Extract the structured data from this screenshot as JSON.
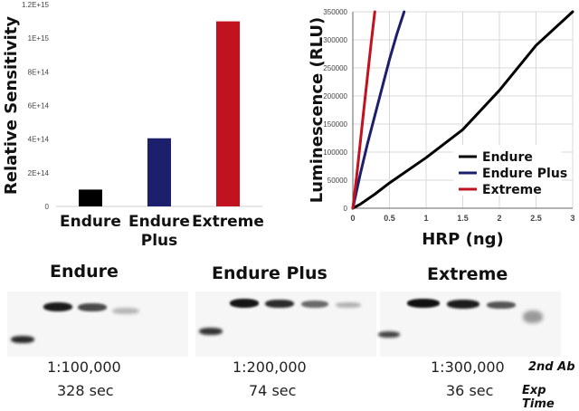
{
  "chart_data": [
    {
      "type": "bar",
      "ylabel": "Relative Sensitivity",
      "categories": [
        "Endure",
        "Endure Plus",
        "Extreme"
      ],
      "category_lines": [
        [
          "Endure"
        ],
        [
          "Endure",
          "Plus"
        ],
        [
          "Extreme"
        ]
      ],
      "values": [
        100000000000000.0,
        405000000000000.0,
        1100000000000000.0
      ],
      "colors": [
        "#000000",
        "#1c1f6b",
        "#c1121f"
      ],
      "ylim": [
        0,
        1200000000000000.0
      ],
      "yticks": [
        0,
        200000000000000.0,
        400000000000000.0,
        600000000000000.0,
        800000000000000.0,
        1000000000000000.0,
        1200000000000000.0
      ],
      "ytick_labels": [
        "0",
        "2E+14",
        "4E+14",
        "6E+14",
        "8E+14",
        "1E+15",
        "1.2E+15"
      ],
      "grid": false
    },
    {
      "type": "line",
      "xlabel": "HRP (ng)",
      "ylabel": "Luminescence (RLU)",
      "xlim": [
        0,
        3
      ],
      "ylim": [
        0,
        350000
      ],
      "xticks": [
        0,
        0.5,
        1,
        1.5,
        2,
        2.5,
        3
      ],
      "xtick_labels": [
        "0",
        "0.5",
        "1",
        "1.5",
        "2",
        "2.5",
        "3"
      ],
      "yticks": [
        0,
        50000,
        100000,
        150000,
        200000,
        250000,
        300000,
        350000
      ],
      "ytick_labels": [
        "0",
        "50000",
        "100000",
        "150000",
        "200000",
        "250000",
        "300000",
        "350000"
      ],
      "grid": true,
      "legend_position": "right",
      "series": [
        {
          "name": "Endure",
          "color": "#000000",
          "x": [
            0,
            0.1,
            0.3,
            0.5,
            1.0,
            1.5,
            2.0,
            2.5,
            3.0
          ],
          "y": [
            0,
            7000,
            25000,
            45000,
            90000,
            140000,
            210000,
            290000,
            350000
          ]
        },
        {
          "name": "Endure Plus",
          "color": "#1c1f6b",
          "x": [
            0,
            0.1,
            0.2,
            0.3,
            0.4,
            0.5,
            0.6,
            0.7
          ],
          "y": [
            0,
            60000,
            115000,
            165000,
            215000,
            265000,
            310000,
            350000
          ]
        },
        {
          "name": "Extreme",
          "color": "#c1121f",
          "x": [
            0,
            0.05,
            0.1,
            0.15,
            0.2,
            0.25,
            0.3
          ],
          "y": [
            0,
            55000,
            115000,
            175000,
            235000,
            295000,
            350000
          ]
        }
      ]
    }
  ],
  "blots": [
    {
      "title": "Endure",
      "dilution": "1:100,000",
      "exposure": "328 sec"
    },
    {
      "title": "Endure Plus",
      "dilution": "1:200,000",
      "exposure": "74 sec"
    },
    {
      "title": "Extreme",
      "dilution": "1:300,000",
      "exposure": "36 sec"
    }
  ],
  "row_labels": {
    "antibody": "2nd Ab",
    "exposure": "Exp Time"
  }
}
